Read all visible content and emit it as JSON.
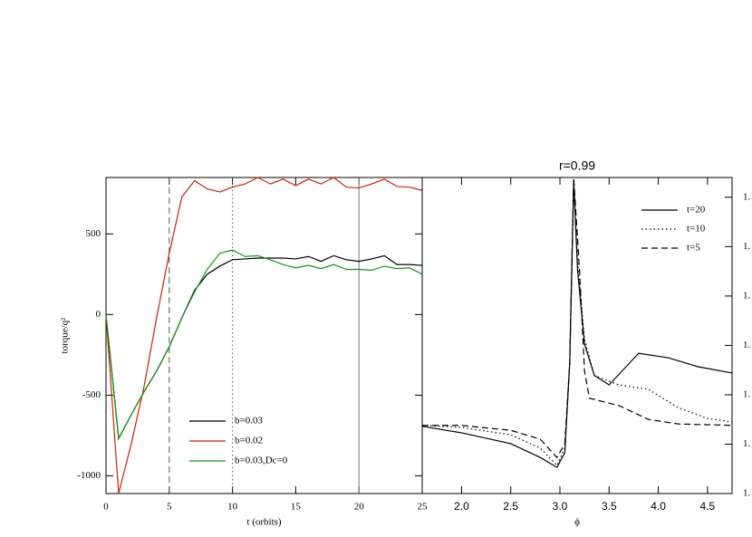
{
  "chart_data": [
    {
      "type": "line",
      "xlabel": "t (orbits)",
      "ylabel": "torque/q²",
      "xlim": [
        0,
        25
      ],
      "ylim": [
        -1110,
        850
      ],
      "xticks": [
        0,
        5,
        10,
        15,
        20,
        25
      ],
      "yticks": [
        -1000,
        -500,
        0,
        500
      ],
      "yaxis_side": "left",
      "legend": "lower center",
      "vlines": [
        {
          "x": 5,
          "style": "dashed",
          "color": "#555555"
        },
        {
          "x": 10,
          "style": "dotted",
          "color": "#555555"
        },
        {
          "x": 20,
          "style": "solid",
          "color": "#777777"
        }
      ],
      "series": [
        {
          "name": "b=0.03",
          "color": "#000000",
          "style": "solid",
          "x": [
            0,
            1,
            2,
            3,
            4,
            5,
            6,
            7,
            8,
            9,
            10,
            11,
            12,
            13,
            14,
            15,
            16,
            17,
            18,
            19,
            20,
            21,
            22,
            23,
            24,
            25
          ],
          "values": [
            0,
            -770,
            -620,
            -480,
            -350,
            -200,
            -20,
            150,
            250,
            300,
            340,
            345,
            350,
            350,
            350,
            345,
            360,
            330,
            365,
            340,
            330,
            345,
            365,
            310,
            310,
            305
          ]
        },
        {
          "name": "b=0.02",
          "color": "#cc2200",
          "style": "solid",
          "x": [
            0,
            1,
            2,
            3,
            4,
            5,
            6,
            7,
            8,
            9,
            10,
            11,
            12,
            13,
            14,
            15,
            16,
            17,
            18,
            19,
            20,
            21,
            22,
            23,
            24,
            25
          ],
          "values": [
            0,
            -1110,
            -800,
            -450,
            -20,
            380,
            730,
            830,
            780,
            760,
            790,
            810,
            850,
            810,
            840,
            800,
            840,
            810,
            850,
            790,
            785,
            810,
            840,
            795,
            790,
            770
          ]
        },
        {
          "name": "b=0.03,Dc=0",
          "color": "#119911",
          "style": "solid",
          "x": [
            0,
            1,
            2,
            3,
            4,
            5,
            6,
            7,
            8,
            9,
            10,
            11,
            12,
            13,
            14,
            15,
            16,
            17,
            18,
            19,
            20,
            21,
            22,
            23,
            24,
            25
          ],
          "values": [
            0,
            -770,
            -620,
            -480,
            -350,
            -200,
            -20,
            140,
            280,
            380,
            400,
            360,
            365,
            340,
            310,
            290,
            305,
            285,
            310,
            280,
            280,
            275,
            300,
            285,
            290,
            250
          ]
        }
      ]
    },
    {
      "type": "line",
      "title": "r=0.99",
      "xlabel": "ϕ",
      "xlim": [
        1.6,
        4.75
      ],
      "ylim": [
        1.3,
        1.94
      ],
      "xticks": [
        {
          "value": 2,
          "label": "2.0"
        },
        {
          "value": 2.5,
          "label": "2.5"
        },
        {
          "value": 3,
          "label": "3.0"
        },
        {
          "value": 3.5,
          "label": "3.5"
        },
        {
          "value": 4,
          "label": "4.0"
        },
        {
          "value": 4.5,
          "label": "4.5"
        }
      ],
      "yticks": [
        {
          "value": 1.3,
          "label": "1."
        },
        {
          "value": 1.4,
          "label": "1."
        },
        {
          "value": 1.5,
          "label": "1."
        },
        {
          "value": 1.6,
          "label": "1."
        },
        {
          "value": 1.7,
          "label": "1."
        },
        {
          "value": 1.8,
          "label": "1."
        },
        {
          "value": 1.9,
          "label": "1."
        }
      ],
      "yaxis_side": "right",
      "legend": "upper right",
      "series": [
        {
          "name": "t=20",
          "color": "#000000",
          "style": "solid",
          "x": [
            1.6,
            2.0,
            2.5,
            2.8,
            2.97,
            3.05,
            3.1,
            3.14,
            3.18,
            3.25,
            3.35,
            3.5,
            3.8,
            4.1,
            4.4,
            4.75
          ],
          "values": [
            1.436,
            1.423,
            1.401,
            1.373,
            1.353,
            1.383,
            1.566,
            1.933,
            1.75,
            1.603,
            1.539,
            1.52,
            1.584,
            1.575,
            1.557,
            1.544
          ]
        },
        {
          "name": "t=10",
          "color": "#000000",
          "style": "dotted",
          "x": [
            1.6,
            2.0,
            2.5,
            2.8,
            2.97,
            3.05,
            3.1,
            3.14,
            3.18,
            3.25,
            3.35,
            3.6,
            3.9,
            4.2,
            4.5,
            4.75
          ],
          "values": [
            1.438,
            1.434,
            1.419,
            1.392,
            1.357,
            1.392,
            1.566,
            1.937,
            1.768,
            1.612,
            1.539,
            1.52,
            1.511,
            1.474,
            1.452,
            1.445
          ]
        },
        {
          "name": "t=5",
          "color": "#000000",
          "style": "dashed",
          "x": [
            1.6,
            2.0,
            2.5,
            2.8,
            2.97,
            3.05,
            3.1,
            3.14,
            3.2,
            3.25,
            3.3,
            3.6,
            3.9,
            4.2,
            4.75
          ],
          "values": [
            1.438,
            1.438,
            1.428,
            1.41,
            1.373,
            1.401,
            1.566,
            1.94,
            1.75,
            1.548,
            1.493,
            1.478,
            1.45,
            1.441,
            1.438
          ]
        }
      ]
    }
  ]
}
